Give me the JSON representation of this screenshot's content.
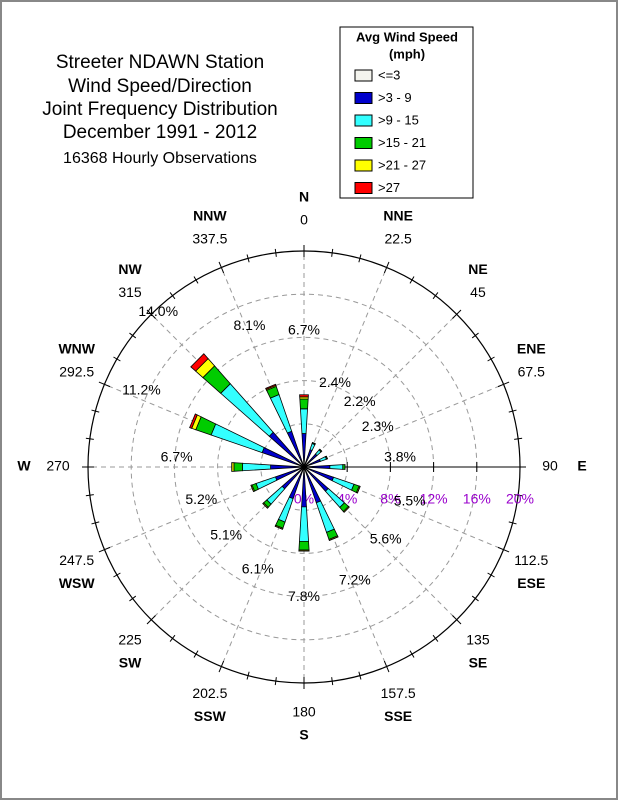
{
  "chart_data": {
    "type": "windrose",
    "title": [
      "Streeter NDAWN Station",
      "Wind Speed/Direction",
      "Joint Frequency Distribution",
      "December 1991 - 2012"
    ],
    "subtitle": "16368 Hourly Observations",
    "legend_title": [
      "Avg Wind Speed",
      "(mph)"
    ],
    "directions": [
      "N",
      "NNE",
      "NE",
      "ENE",
      "E",
      "ESE",
      "SE",
      "SSE",
      "S",
      "SSW",
      "SW",
      "WSW",
      "W",
      "WNW",
      "NW",
      "NNW"
    ],
    "angles": [
      0,
      22.5,
      45,
      67.5,
      90,
      112.5,
      135,
      157.5,
      180,
      202.5,
      225,
      247.5,
      270,
      292.5,
      315,
      337.5
    ],
    "direction_totals": [
      6.7,
      2.4,
      2.2,
      2.3,
      3.8,
      5.5,
      5.6,
      7.2,
      7.8,
      6.1,
      5.1,
      5.2,
      6.7,
      11.2,
      14.0,
      8.1
    ],
    "direction_total_labels": [
      "6.7%",
      "2.4%",
      "2.2%",
      "2.3%",
      "3.8%",
      "5.5%",
      "5.6%",
      "7.2%",
      "7.8%",
      "6.1%",
      "5.1%",
      "5.2%",
      "6.7%",
      "11.2%",
      "14.0%",
      "8.1%"
    ],
    "series": [
      {
        "name": "<=3",
        "color": "#f4f4ee",
        "values": [
          0.1,
          0.1,
          0.1,
          0.1,
          0.1,
          0.1,
          0.1,
          0.1,
          0.1,
          0.1,
          0.1,
          0.1,
          0.1,
          0.1,
          0.1,
          0.1
        ]
      },
      {
        "name": ">3 - 9",
        "color": "#0000cc",
        "values": [
          3.0,
          1.6,
          1.5,
          1.5,
          2.3,
          2.8,
          2.9,
          3.4,
          3.6,
          3.0,
          2.6,
          2.7,
          3.0,
          4.0,
          4.2,
          3.4
        ]
      },
      {
        "name": ">9 - 15",
        "color": "#33ffff",
        "values": [
          2.3,
          0.6,
          0.5,
          0.6,
          1.2,
          2.0,
          2.0,
          2.9,
          3.2,
          2.3,
          1.9,
          1.9,
          2.6,
          5.0,
          6.0,
          3.6
        ]
      },
      {
        "name": ">15 - 21",
        "color": "#00cc00",
        "values": [
          0.9,
          0.1,
          0.1,
          0.1,
          0.2,
          0.5,
          0.5,
          0.7,
          0.8,
          0.6,
          0.4,
          0.4,
          0.8,
          1.5,
          2.2,
          0.8
        ]
      },
      {
        "name": ">21 - 27",
        "color": "#ffff00",
        "values": [
          0.2,
          0,
          0,
          0,
          0,
          0.1,
          0.1,
          0.1,
          0.1,
          0.1,
          0.1,
          0.1,
          0.2,
          0.4,
          0.9,
          0.1
        ]
      },
      {
        "name": ">27",
        "color": "#ff0000",
        "values": [
          0.2,
          0,
          0,
          0,
          0,
          0,
          0,
          0,
          0,
          0,
          0,
          0,
          0,
          0.2,
          0.6,
          0.1
        ]
      }
    ],
    "rlim": [
      0,
      20
    ],
    "rticks": [
      {
        "value": 0,
        "label": "0%"
      },
      {
        "value": 4,
        "label": "4%"
      },
      {
        "value": 8,
        "label": "8%"
      },
      {
        "value": 12,
        "label": "12%"
      },
      {
        "value": 16,
        "label": "16%"
      },
      {
        "value": 20,
        "label": "20%"
      }
    ],
    "rtick_color": "#9900cc"
  }
}
